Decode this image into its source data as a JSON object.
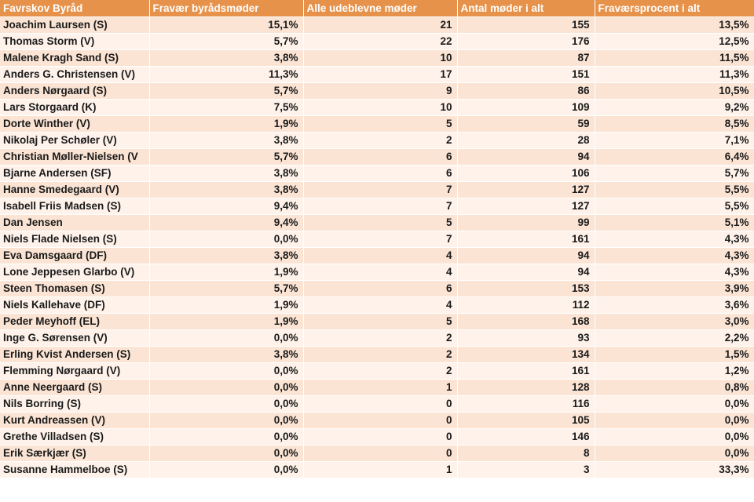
{
  "columns": [
    "Favrskov Byråd",
    "Fravær byrådsmøder",
    "Alle udeblevne møder",
    "Antal møder i alt",
    "Fraværsprocent i alt"
  ],
  "rows": [
    [
      "Joachim Laursen (S)",
      "15,1%",
      "21",
      "155",
      "13,5%"
    ],
    [
      "Thomas Storm (V)",
      "5,7%",
      "22",
      "176",
      "12,5%"
    ],
    [
      "Malene Kragh Sand (S)",
      "3,8%",
      "10",
      "87",
      "11,5%"
    ],
    [
      "Anders G. Christensen (V)",
      "11,3%",
      "17",
      "151",
      "11,3%"
    ],
    [
      "Anders Nørgaard (S)",
      "5,7%",
      "9",
      "86",
      "10,5%"
    ],
    [
      "Lars Storgaard (K)",
      "7,5%",
      "10",
      "109",
      "9,2%"
    ],
    [
      "Dorte Winther (V)",
      "1,9%",
      "5",
      "59",
      "8,5%"
    ],
    [
      "Nikolaj Per Schøler (V)",
      "3,8%",
      "2",
      "28",
      "7,1%"
    ],
    [
      "Christian Møller-Nielsen (V",
      "5,7%",
      "6",
      "94",
      "6,4%"
    ],
    [
      "Bjarne Andersen (SF)",
      "3,8%",
      "6",
      "106",
      "5,7%"
    ],
    [
      "Hanne Smedegaard (V)",
      "3,8%",
      "7",
      "127",
      "5,5%"
    ],
    [
      "Isabell Friis Madsen (S)",
      "9,4%",
      "7",
      "127",
      "5,5%"
    ],
    [
      "Dan Jensen",
      "9,4%",
      "5",
      "99",
      "5,1%"
    ],
    [
      "Niels Flade Nielsen (S)",
      "0,0%",
      "7",
      "161",
      "4,3%"
    ],
    [
      "Eva Damsgaard (DF)",
      "3,8%",
      "4",
      "94",
      "4,3%"
    ],
    [
      "Lone Jeppesen Glarbo (V)",
      "1,9%",
      "4",
      "94",
      "4,3%"
    ],
    [
      "Steen Thomasen (S)",
      "5,7%",
      "6",
      "153",
      "3,9%"
    ],
    [
      "Niels Kallehave (DF)",
      "1,9%",
      "4",
      "112",
      "3,6%"
    ],
    [
      "Peder Meyhoff (EL)",
      "1,9%",
      "5",
      "168",
      "3,0%"
    ],
    [
      "Inge G. Sørensen (V)",
      "0,0%",
      "2",
      "93",
      "2,2%"
    ],
    [
      "Erling Kvist Andersen (S)",
      "3,8%",
      "2",
      "134",
      "1,5%"
    ],
    [
      "Flemming Nørgaard (V)",
      "0,0%",
      "2",
      "161",
      "1,2%"
    ],
    [
      "Anne Neergaard (S)",
      "0,0%",
      "1",
      "128",
      "0,8%"
    ],
    [
      "Nils Borring (S)",
      "0,0%",
      "0",
      "116",
      "0,0%"
    ],
    [
      "Kurt Andreassen (V)",
      "0,0%",
      "0",
      "105",
      "0,0%"
    ],
    [
      "Grethe Villadsen (S)",
      "0,0%",
      "0",
      "146",
      "0,0%"
    ],
    [
      "Erik Særkjær (S)",
      "0,0%",
      "0",
      "8",
      "0,0%"
    ],
    [
      "Susanne Hammelboe (S)",
      "0,0%",
      "1",
      "3",
      "33,3%"
    ]
  ],
  "colors": {
    "header": "#e7924b",
    "row_odd": "#fbe4d4",
    "row_even": "#fef2ea"
  }
}
